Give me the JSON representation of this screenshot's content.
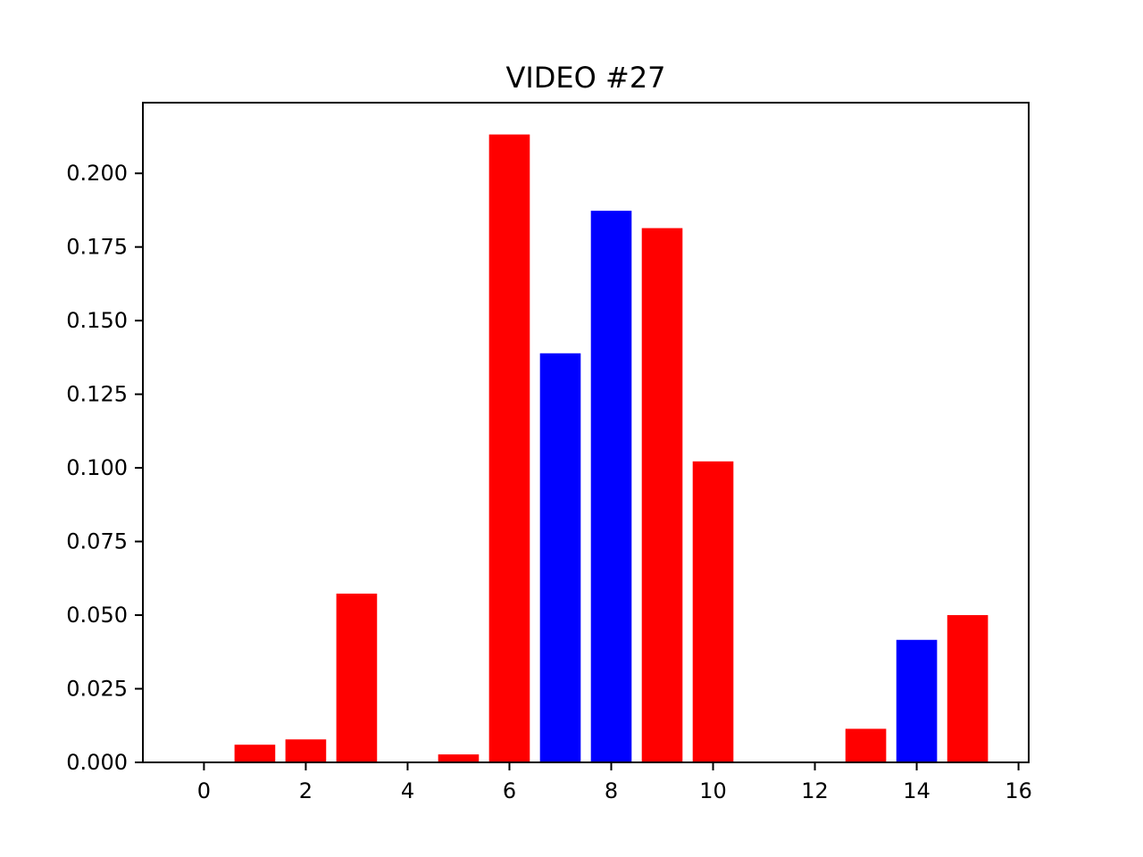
{
  "chart_data": {
    "type": "bar",
    "title": "VIDEO #27",
    "xlabel": "",
    "ylabel": "",
    "xlim": [
      -1.2,
      16.2
    ],
    "ylim": [
      0,
      0.224
    ],
    "xticks": [
      0,
      2,
      4,
      6,
      8,
      10,
      12,
      14,
      16
    ],
    "xtick_labels": [
      "0",
      "2",
      "4",
      "6",
      "8",
      "10",
      "12",
      "14",
      "16"
    ],
    "yticks": [
      0,
      0.025,
      0.05,
      0.075,
      0.1,
      0.125,
      0.15,
      0.175,
      0.2
    ],
    "ytick_labels": [
      "0.000",
      "0.025",
      "0.050",
      "0.075",
      "0.100",
      "0.125",
      "0.150",
      "0.175",
      "0.200"
    ],
    "bar_width": 0.8,
    "grid": false,
    "legend": "none",
    "colors": {
      "red": "#ff0000",
      "blue": "#0000ff"
    },
    "bars": [
      {
        "x": 0,
        "value": 0.0,
        "color": "#ff0000"
      },
      {
        "x": 1,
        "value": 0.006,
        "color": "#ff0000"
      },
      {
        "x": 2,
        "value": 0.0078,
        "color": "#ff0000"
      },
      {
        "x": 3,
        "value": 0.0573,
        "color": "#ff0000"
      },
      {
        "x": 4,
        "value": 0.0,
        "color": "#ff0000"
      },
      {
        "x": 5,
        "value": 0.0027,
        "color": "#ff0000"
      },
      {
        "x": 6,
        "value": 0.2132,
        "color": "#ff0000"
      },
      {
        "x": 7,
        "value": 0.1389,
        "color": "#0000ff"
      },
      {
        "x": 8,
        "value": 0.1873,
        "color": "#0000ff"
      },
      {
        "x": 9,
        "value": 0.1814,
        "color": "#ff0000"
      },
      {
        "x": 10,
        "value": 0.1022,
        "color": "#ff0000"
      },
      {
        "x": 11,
        "value": 0.0,
        "color": "#ff0000"
      },
      {
        "x": 12,
        "value": 0.0,
        "color": "#ff0000"
      },
      {
        "x": 13,
        "value": 0.0114,
        "color": "#ff0000"
      },
      {
        "x": 14,
        "value": 0.0416,
        "color": "#0000ff"
      },
      {
        "x": 15,
        "value": 0.05,
        "color": "#ff0000"
      }
    ]
  }
}
